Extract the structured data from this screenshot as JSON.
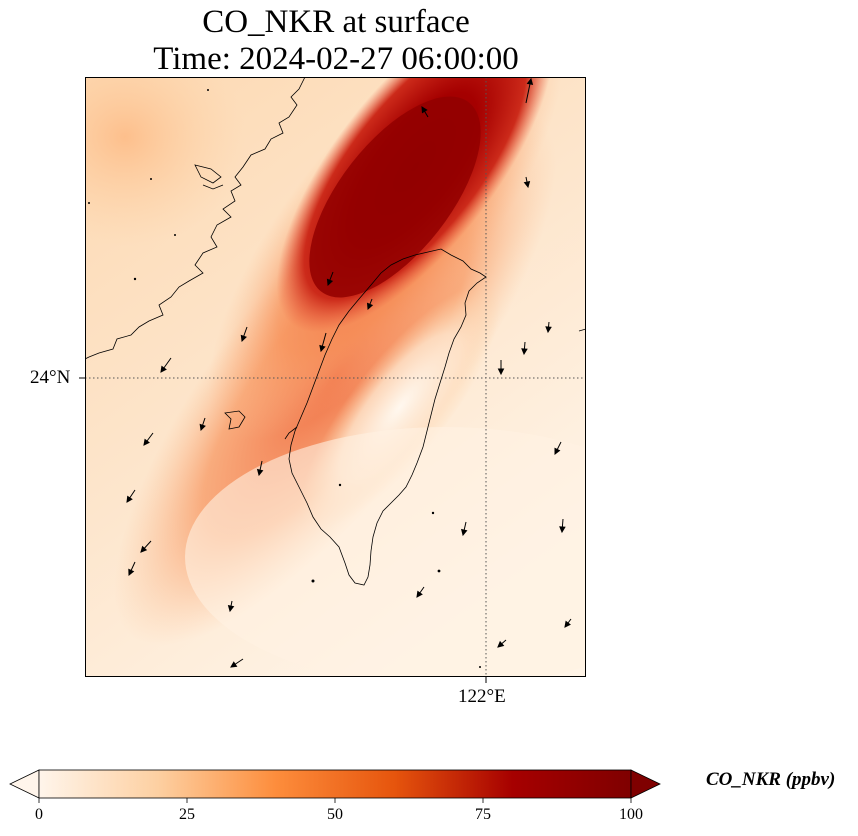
{
  "title": {
    "line1": "CO_NKR at surface",
    "line2": "Time: 2024-02-27 06:00:00"
  },
  "axes": {
    "lat_tick": "24°N",
    "lon_tick": "122°E"
  },
  "colorbar": {
    "label": "CO_NKR (ppbv)",
    "ticks": [
      "0",
      "25",
      "50",
      "75",
      "100"
    ],
    "min": 0,
    "max": 100,
    "colormap": [
      "#fff5eb",
      "#fdd0a2",
      "#fd8d3c",
      "#e6550d",
      "#a60000",
      "#7f0000"
    ]
  },
  "colors": {
    "coastline": "#000000",
    "gridline": "#555555",
    "wind_arrow": "#000000"
  }
}
